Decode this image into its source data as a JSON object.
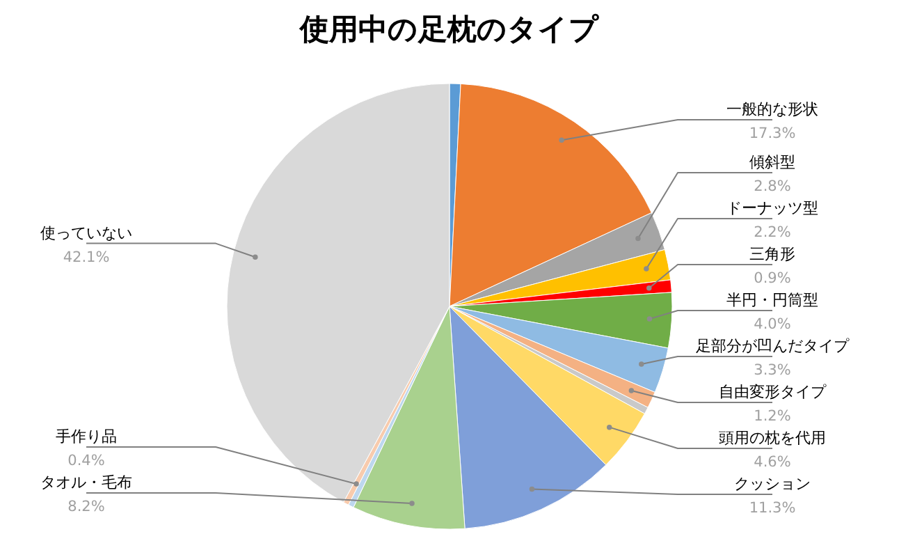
{
  "chart_data": {
    "type": "pie",
    "title": "使用中の足枕のタイプ",
    "categories": [
      null,
      "一般的な形状",
      "傾斜型",
      "ドーナッツ型",
      "三角形",
      "半円・円筒型",
      "足部分が凹んだタイプ",
      "自由変形タイプ",
      null,
      "頭用の枕を代用",
      "クッション",
      "タオル・毛布",
      null,
      "手作り品",
      "使っていない"
    ],
    "values": [
      0.8,
      17.3,
      2.8,
      2.2,
      0.9,
      4.0,
      3.3,
      1.2,
      0.5,
      4.6,
      11.3,
      8.2,
      0.4,
      0.4,
      42.1
    ],
    "value_labels": [
      null,
      "17.3%",
      "2.8%",
      "2.2%",
      "0.9%",
      "4.0%",
      "3.3%",
      "1.2%",
      null,
      "4.6%",
      "11.3%",
      "8.2%",
      null,
      "0.4%",
      "42.1%"
    ],
    "colors": [
      "#5b9bd5",
      "#ed7d31",
      "#a5a5a5",
      "#ffc000",
      "#ff0000",
      "#70ad47",
      "#8fbbe3",
      "#f4b183",
      "#c9c9c9",
      "#ffd966",
      "#7f9fd9",
      "#a9d18e",
      "#bdd7ee",
      "#f8cbad",
      "#d9d9d9"
    ]
  }
}
